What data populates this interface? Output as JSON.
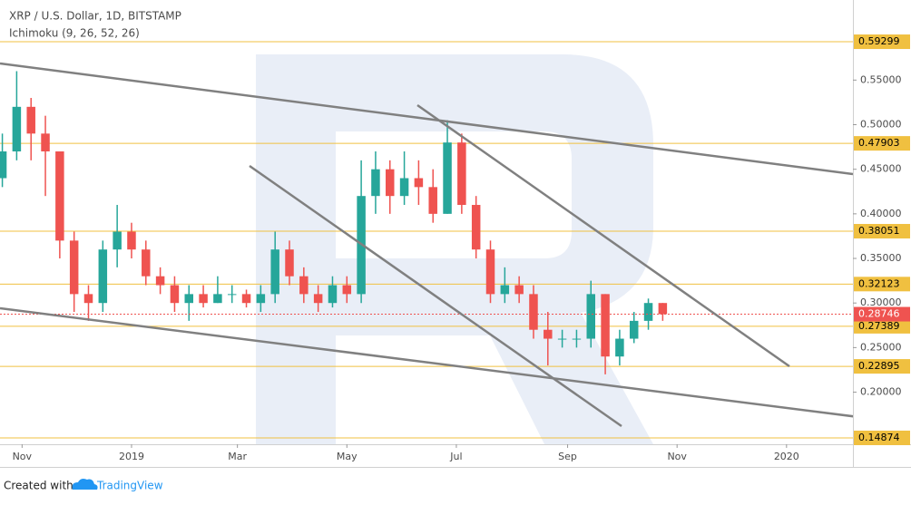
{
  "chart_data": {
    "type": "candlestick",
    "title": "XRP / U.S. Dollar, 1D, BITSTAMP",
    "subtitle": "Ichimoku (9, 26, 52, 26)",
    "x": [
      -72,
      -64,
      -56,
      -48,
      -40,
      -32,
      -24,
      -16,
      -8,
      0,
      8,
      16,
      24,
      32,
      40,
      48,
      56,
      64,
      72,
      80,
      88,
      96,
      104,
      112,
      120,
      128,
      136,
      144,
      152,
      160,
      168,
      176,
      184,
      192,
      200,
      208,
      216,
      224,
      232,
      240,
      248,
      256,
      264,
      272,
      280,
      288,
      296
    ],
    "open": [
      0.44,
      0.47,
      0.52,
      0.49,
      0.47,
      0.37,
      0.31,
      0.3,
      0.36,
      0.38,
      0.36,
      0.33,
      0.32,
      0.3,
      0.31,
      0.3,
      0.31,
      0.31,
      0.3,
      0.31,
      0.36,
      0.33,
      0.31,
      0.3,
      0.32,
      0.31,
      0.42,
      0.45,
      0.42,
      0.44,
      0.43,
      0.4,
      0.48,
      0.41,
      0.36,
      0.31,
      0.32,
      0.31,
      0.27,
      0.26,
      0.26,
      0.26,
      0.31,
      0.24,
      0.26,
      0.28,
      0.3
    ],
    "high": [
      0.49,
      0.56,
      0.53,
      0.51,
      0.47,
      0.38,
      0.32,
      0.37,
      0.41,
      0.39,
      0.37,
      0.34,
      0.33,
      0.32,
      0.32,
      0.33,
      0.32,
      0.315,
      0.32,
      0.38,
      0.37,
      0.34,
      0.32,
      0.33,
      0.33,
      0.46,
      0.47,
      0.46,
      0.47,
      0.46,
      0.45,
      0.505,
      0.49,
      0.42,
      0.37,
      0.34,
      0.33,
      0.32,
      0.29,
      0.27,
      0.27,
      0.325,
      0.31,
      0.27,
      0.29,
      0.305,
      0.3
    ],
    "low": [
      0.43,
      0.46,
      0.46,
      0.42,
      0.35,
      0.29,
      0.28,
      0.29,
      0.34,
      0.35,
      0.32,
      0.31,
      0.29,
      0.28,
      0.295,
      0.3,
      0.3,
      0.295,
      0.29,
      0.3,
      0.32,
      0.3,
      0.29,
      0.295,
      0.3,
      0.3,
      0.4,
      0.4,
      0.41,
      0.41,
      0.39,
      0.4,
      0.4,
      0.35,
      0.3,
      0.3,
      0.3,
      0.26,
      0.23,
      0.25,
      0.25,
      0.25,
      0.22,
      0.23,
      0.255,
      0.27,
      0.28
    ],
    "close": [
      0.47,
      0.52,
      0.49,
      0.47,
      0.37,
      0.31,
      0.3,
      0.36,
      0.38,
      0.36,
      0.33,
      0.32,
      0.3,
      0.31,
      0.3,
      0.31,
      0.31,
      0.3,
      0.31,
      0.36,
      0.33,
      0.31,
      0.3,
      0.32,
      0.31,
      0.42,
      0.45,
      0.42,
      0.44,
      0.43,
      0.4,
      0.48,
      0.41,
      0.36,
      0.31,
      0.32,
      0.31,
      0.27,
      0.26,
      0.26,
      0.26,
      0.31,
      0.24,
      0.26,
      0.28,
      0.3,
      0.2875
    ],
    "up_color": "#26a69a",
    "down_color": "#ef5350",
    "levels": [
      0.59299,
      0.47903,
      0.38051,
      0.32123,
      0.27389,
      0.22895,
      0.14874
    ],
    "level_color": "#f0c040",
    "last_price": 0.28746,
    "last_price_color": "#ef5350",
    "xlim": [
      -73.3,
      402
    ],
    "xticks": [
      {
        "value": -61,
        "label": "Nov"
      },
      {
        "value": 0,
        "label": "2019"
      },
      {
        "value": 59,
        "label": "Mar"
      },
      {
        "value": 120,
        "label": "May"
      },
      {
        "value": 181,
        "label": "Jul"
      },
      {
        "value": 243,
        "label": "Sep"
      },
      {
        "value": 304,
        "label": "Nov"
      },
      {
        "value": 365,
        "label": "2020"
      }
    ],
    "ylim": [
      0.1416,
      0.6398
    ],
    "yticks": [
      {
        "value": 0.2,
        "label": "0.20000"
      },
      {
        "value": 0.25,
        "label": "0.25000"
      },
      {
        "value": 0.3,
        "label": "0.30000"
      },
      {
        "value": 0.35,
        "label": "0.35000"
      },
      {
        "value": 0.4,
        "label": "0.40000"
      },
      {
        "value": 0.45,
        "label": "0.45000"
      },
      {
        "value": 0.5,
        "label": "0.50000"
      },
      {
        "value": 0.55,
        "label": "0.55000"
      }
    ],
    "footer": {
      "prefix": "Created with",
      "brand": "TradingView"
    }
  }
}
